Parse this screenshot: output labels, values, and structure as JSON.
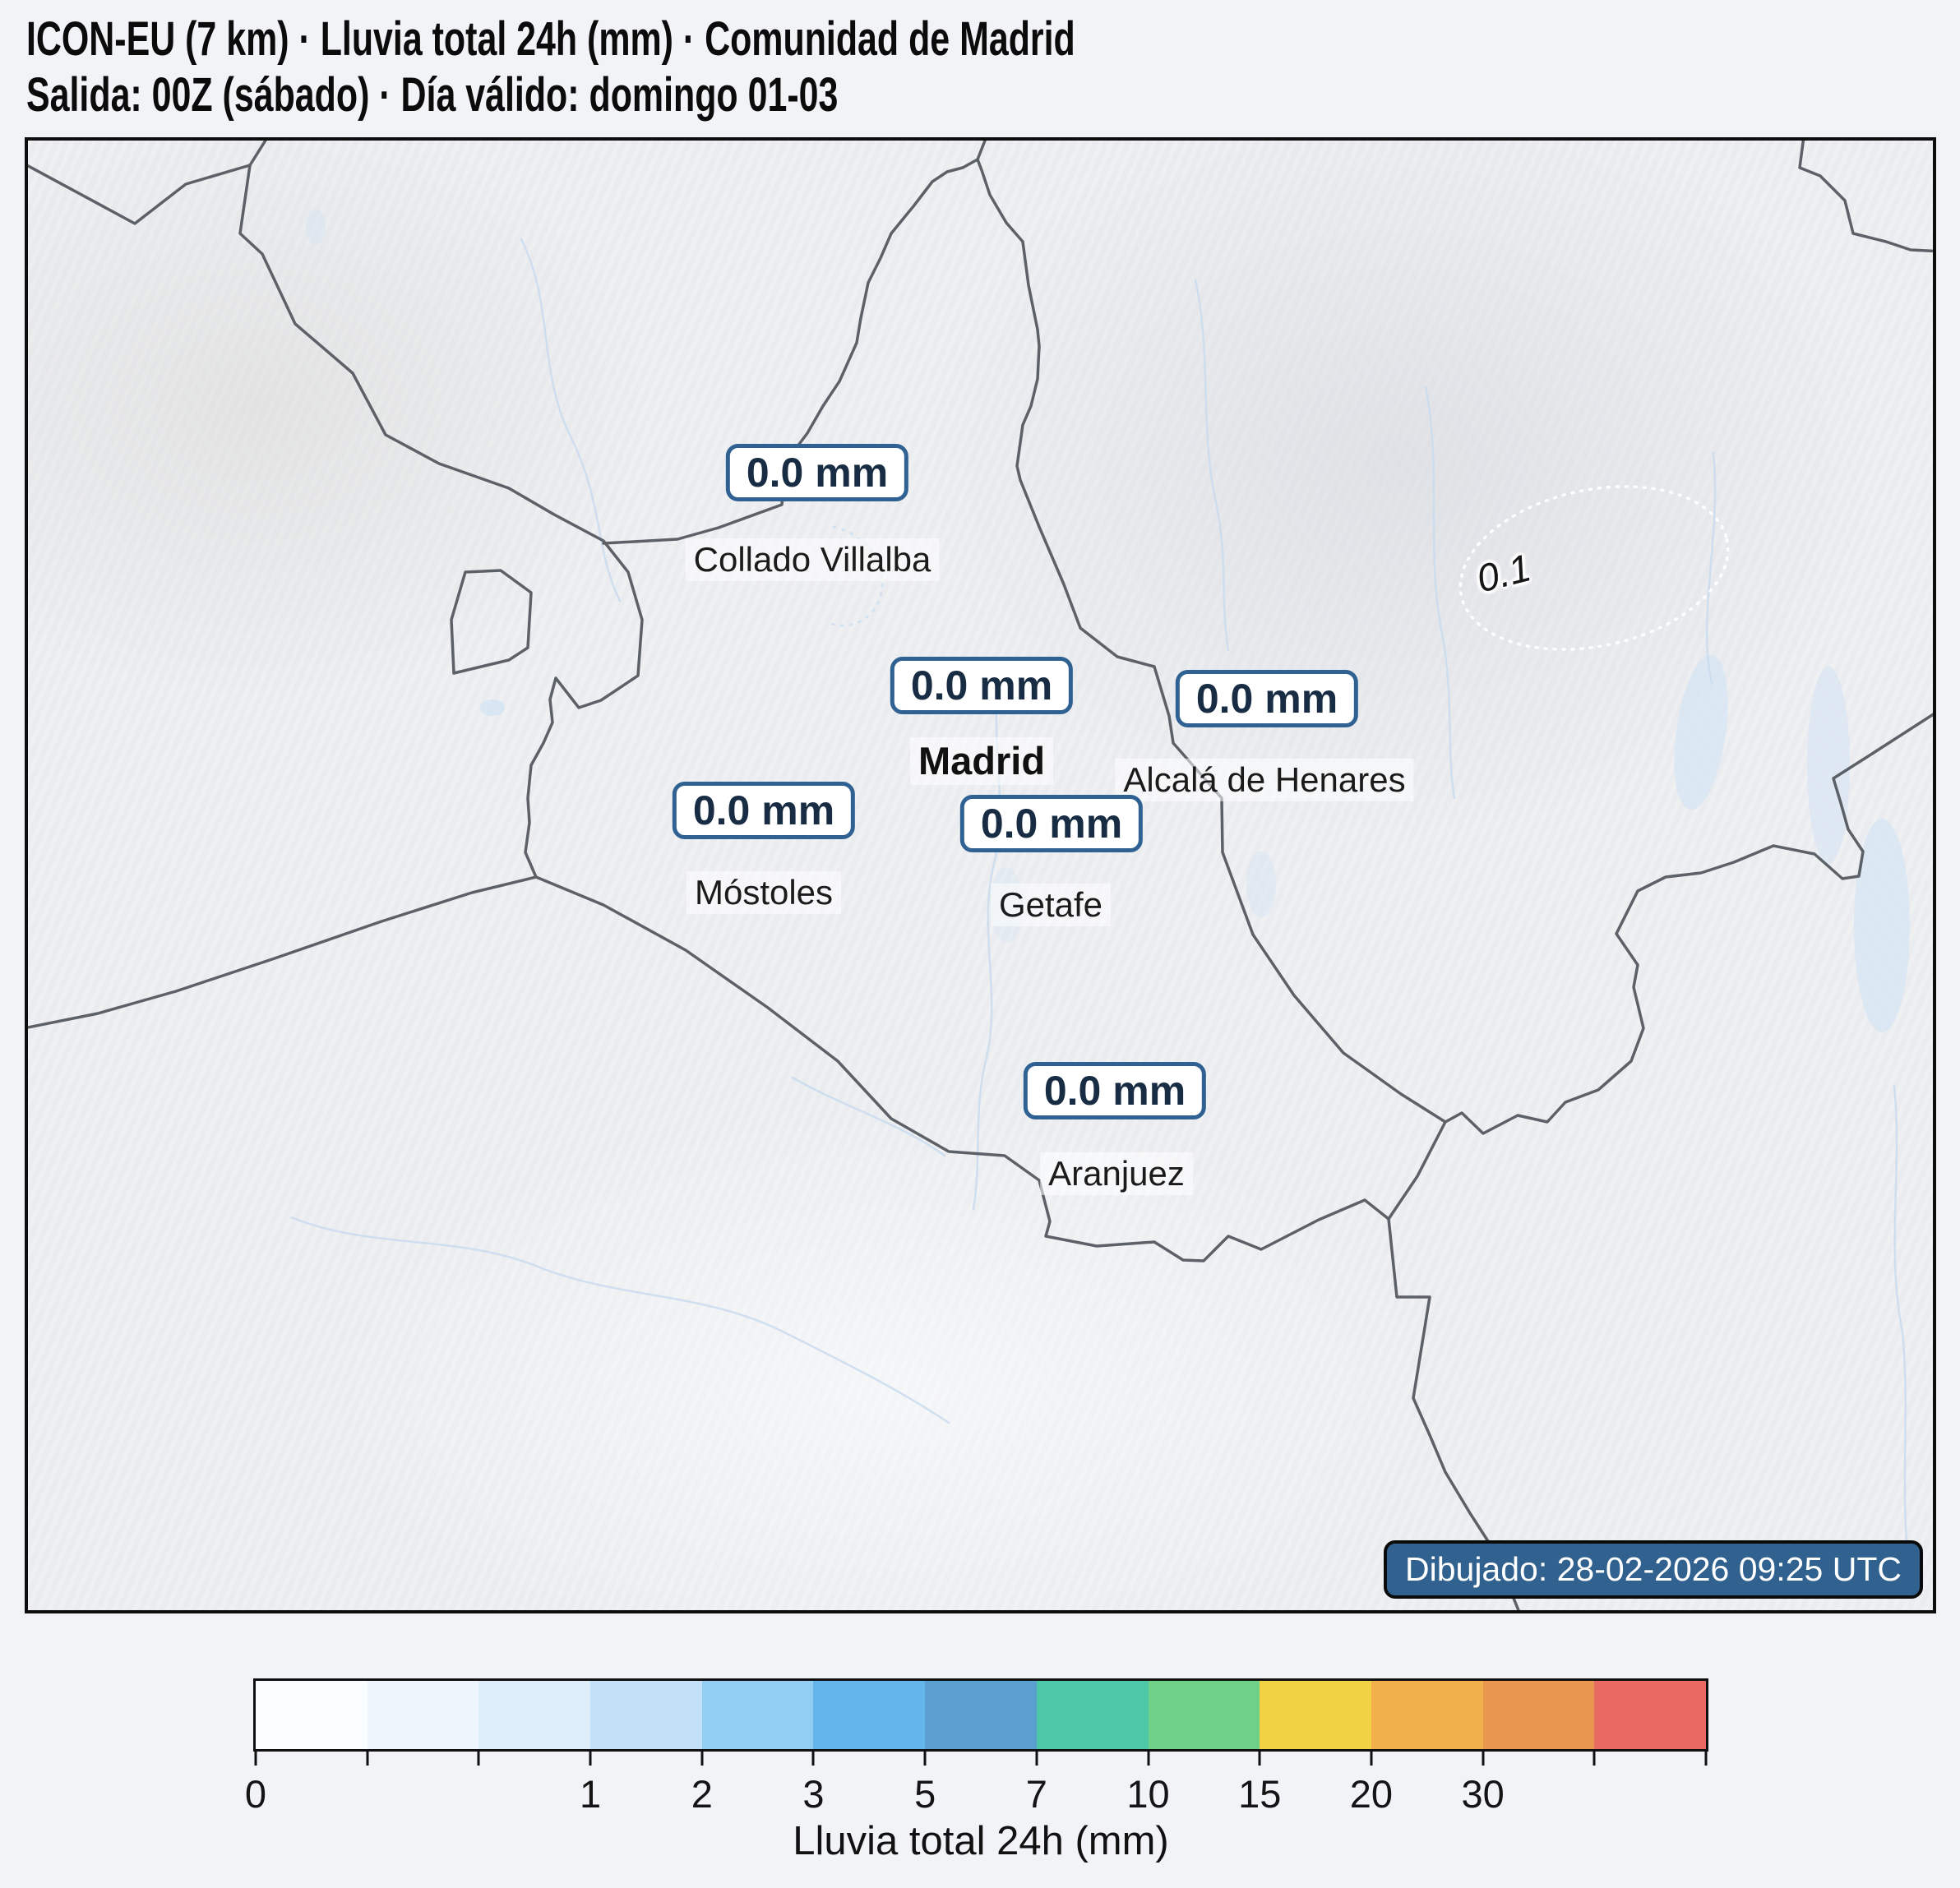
{
  "title": {
    "line1": "ICON-EU (7 km) · Lluvia total 24h (mm) · Comunidad de Madrid",
    "line2": "Salida: 00Z (sábado) · Día válido: domingo 01-03"
  },
  "map": {
    "stations": [
      {
        "city": "Collado Villalba",
        "value": "0.0 mm"
      },
      {
        "city": "Madrid",
        "value": "0.0 mm"
      },
      {
        "city": "Alcalá de Henares",
        "value": "0.0 mm"
      },
      {
        "city": "Móstoles",
        "value": "0.0 mm"
      },
      {
        "city": "Getafe",
        "value": "0.0 mm"
      },
      {
        "city": "Aranjuez",
        "value": "0.0 mm"
      }
    ],
    "contour_label": "0.1",
    "footer_note": "Dibujado: 28-02-2026 09:25 UTC",
    "colors": {
      "value_box_border": "#2f6192",
      "value_text": "#182c44",
      "footer_badge_bg": "#31618e",
      "boundary_line": "#5c6168",
      "river_line": "#c9dcee",
      "water_fill": "#d6e5f3",
      "contour_dotted": "#ffffff"
    }
  },
  "colorbar": {
    "title": "Lluvia total 24h (mm)",
    "segment_colors": [
      "#fafdff",
      "#eef5fc",
      "#ddedfa",
      "#c2e0f7",
      "#92cdf4",
      "#64b5ec",
      "#5a9fcf",
      "#4cc8a8",
      "#6fd088",
      "#f0d244",
      "#f2b04a",
      "#e9964f",
      "#e96a62"
    ],
    "tick_labels": [
      "0",
      "",
      "",
      "1",
      "2",
      "3",
      "5",
      "7",
      "10",
      "15",
      "20",
      "30",
      "",
      ""
    ]
  }
}
